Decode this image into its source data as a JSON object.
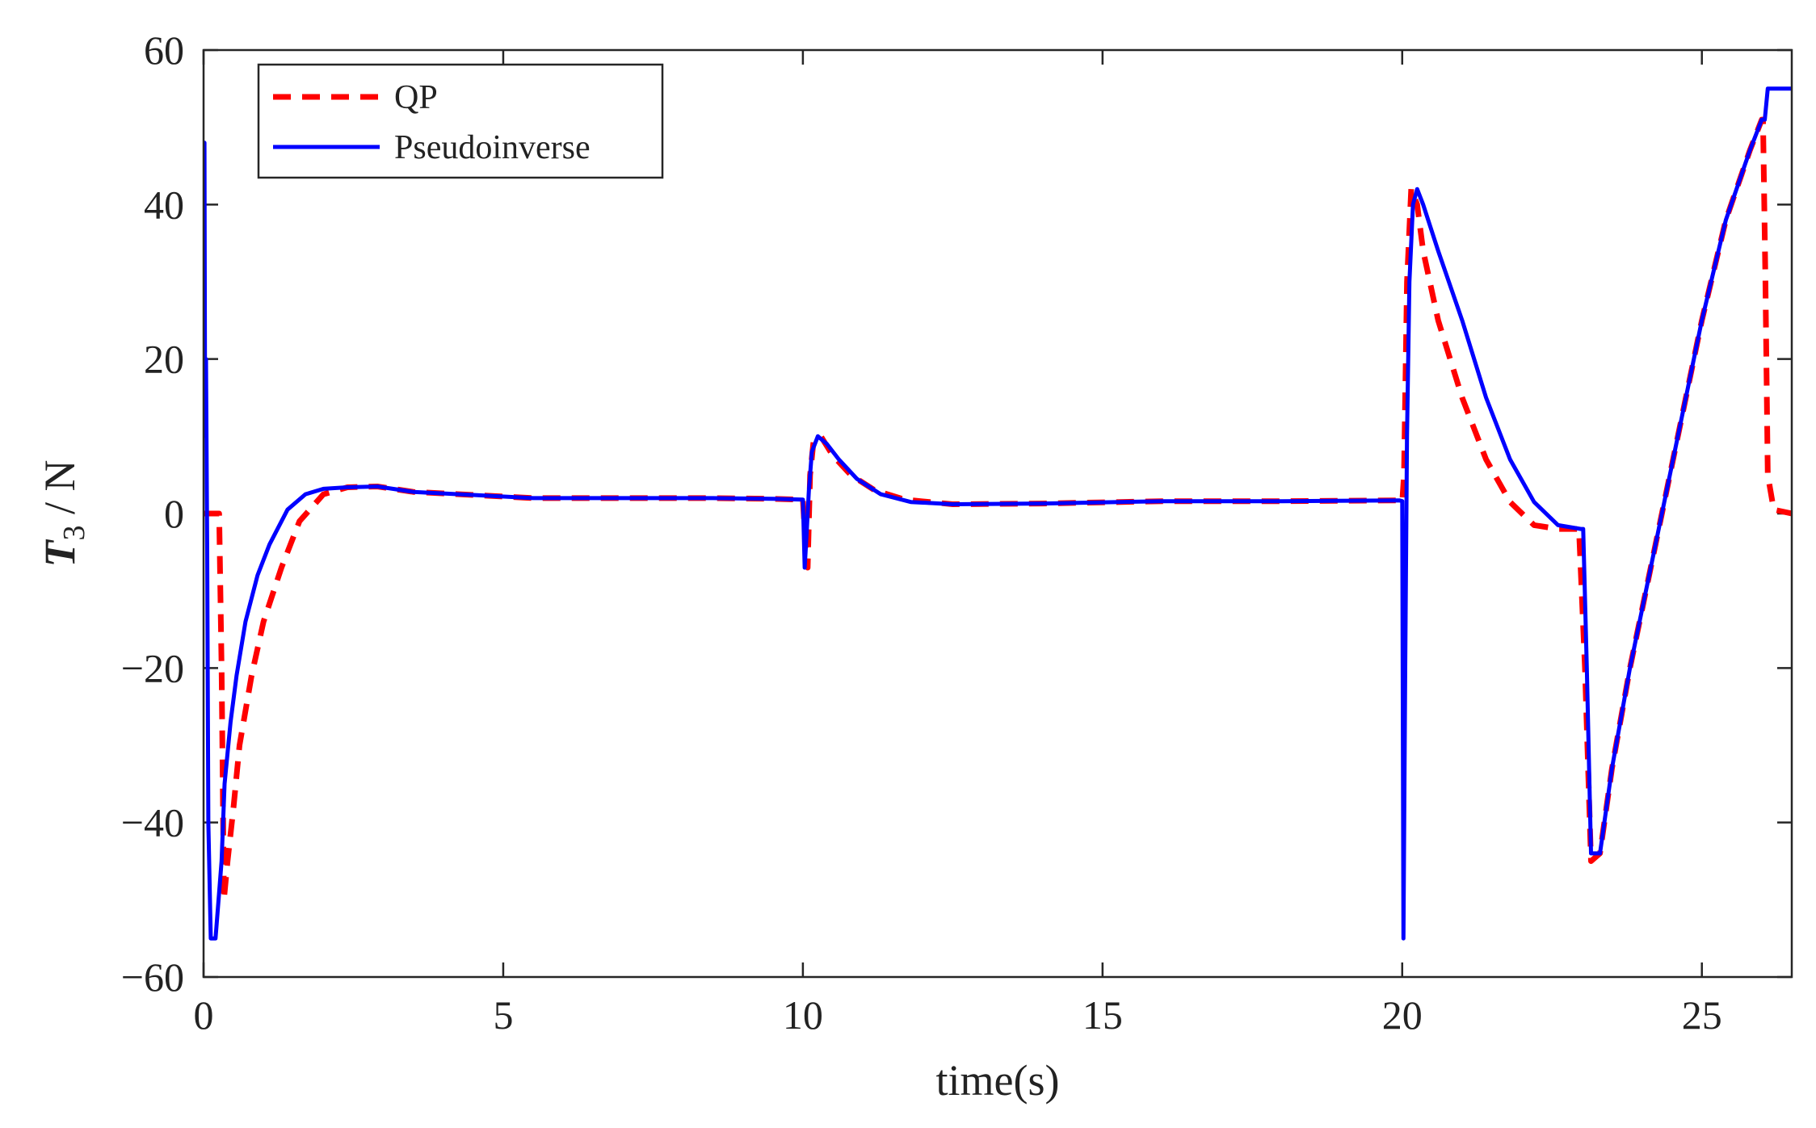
{
  "chart_data": {
    "type": "line",
    "title": "",
    "xlabel": "time(s)",
    "ylabel": {
      "symbol": "T",
      "subscript": "3",
      "unit": " / N"
    },
    "xlim": [
      0,
      26.5
    ],
    "ylim": [
      -60,
      60
    ],
    "xticks": [
      0,
      5,
      10,
      15,
      20,
      25
    ],
    "yticks": [
      -60,
      -40,
      -20,
      0,
      20,
      40,
      60
    ],
    "xtick_labels": [
      "0",
      "5",
      "10",
      "15",
      "20",
      "25"
    ],
    "ytick_labels": [
      "−60",
      "−40",
      "−20",
      "0",
      "20",
      "40",
      "60"
    ],
    "grid": false,
    "legend_position": "top-left",
    "series": [
      {
        "name": "QP",
        "color": "#ff0000",
        "style": "dashed",
        "x": [
          0,
          0.05,
          0.1,
          0.18,
          0.22,
          0.26,
          0.3,
          0.34,
          0.4,
          0.5,
          0.6,
          0.8,
          1.0,
          1.3,
          1.6,
          2.0,
          2.4,
          2.9,
          3.5,
          4.5,
          5.5,
          7,
          8.5,
          9.5,
          10.0,
          10.05,
          10.08,
          10.12,
          10.18,
          10.3,
          10.5,
          10.8,
          11.2,
          11.7,
          12.5,
          14,
          16,
          18,
          19.9,
          20.0,
          20.03,
          20.08,
          20.15,
          20.25,
          20.35,
          20.6,
          21.0,
          21.4,
          21.8,
          22.2,
          22.6,
          22.95,
          23.05,
          23.15,
          23.3,
          23.5,
          23.8,
          24.2,
          24.6,
          25.0,
          25.4,
          25.8,
          26.0,
          26.02,
          26.06,
          26.1,
          26.2,
          26.5
        ],
        "y": [
          0,
          0,
          0,
          0,
          0,
          0,
          -20,
          -50,
          -45,
          -38,
          -30,
          -21,
          -14,
          -7,
          -1,
          2.5,
          3.4,
          3.5,
          2.8,
          2.4,
          2.0,
          2.0,
          2.0,
          1.9,
          1.8,
          -5,
          -7,
          5,
          9.5,
          10,
          7.5,
          5,
          3,
          1.8,
          1.2,
          1.3,
          1.6,
          1.6,
          1.7,
          1.5,
          5,
          30,
          42,
          40,
          34,
          25,
          15,
          7,
          1.5,
          -1.5,
          -2,
          -2,
          -20,
          -45,
          -44,
          -33,
          -20,
          -5,
          10,
          25,
          38,
          47,
          51,
          51,
          30,
          5,
          0.5,
          0
        ]
      },
      {
        "name": "Pseudoinverse",
        "color": "#0000ff",
        "style": "solid",
        "x": [
          0,
          0.015,
          0.025,
          0.04,
          0.06,
          0.08,
          0.12,
          0.16,
          0.2,
          0.3,
          0.35,
          0.45,
          0.55,
          0.7,
          0.9,
          1.1,
          1.4,
          1.7,
          2.0,
          2.4,
          2.9,
          3.5,
          4.5,
          5.5,
          7,
          8.5,
          9.5,
          10.0,
          10.03,
          10.06,
          10.1,
          10.15,
          10.25,
          10.4,
          10.6,
          10.9,
          11.3,
          11.8,
          12.5,
          14,
          16,
          18,
          19.95,
          20.0,
          20.02,
          20.05,
          20.08,
          20.12,
          20.18,
          20.25,
          20.35,
          20.6,
          21.0,
          21.4,
          21.8,
          22.2,
          22.6,
          22.98,
          23.02,
          23.08,
          23.15,
          23.3,
          23.5,
          23.8,
          24.2,
          24.6,
          25.0,
          25.4,
          25.8,
          26.0,
          26.05,
          26.1,
          26.5
        ],
        "y": [
          10,
          48,
          10,
          20,
          -5,
          -40,
          -55,
          -55,
          -55,
          -45,
          -35,
          -27,
          -21,
          -14,
          -8,
          -4,
          0.5,
          2.5,
          3.2,
          3.4,
          3.5,
          2.8,
          2.4,
          2.0,
          2.0,
          2.0,
          1.9,
          1.8,
          -7,
          -3,
          3,
          8,
          10,
          9,
          7,
          4.5,
          2.5,
          1.5,
          1.2,
          1.3,
          1.6,
          1.6,
          1.7,
          1.6,
          -55,
          -20,
          10,
          30,
          40,
          42,
          40,
          34,
          25,
          15,
          7,
          1.5,
          -1.5,
          -2,
          -2,
          -20,
          -44,
          -44,
          -33,
          -20,
          -5,
          10,
          25,
          38,
          47,
          51,
          51,
          55,
          55
        ]
      }
    ]
  }
}
